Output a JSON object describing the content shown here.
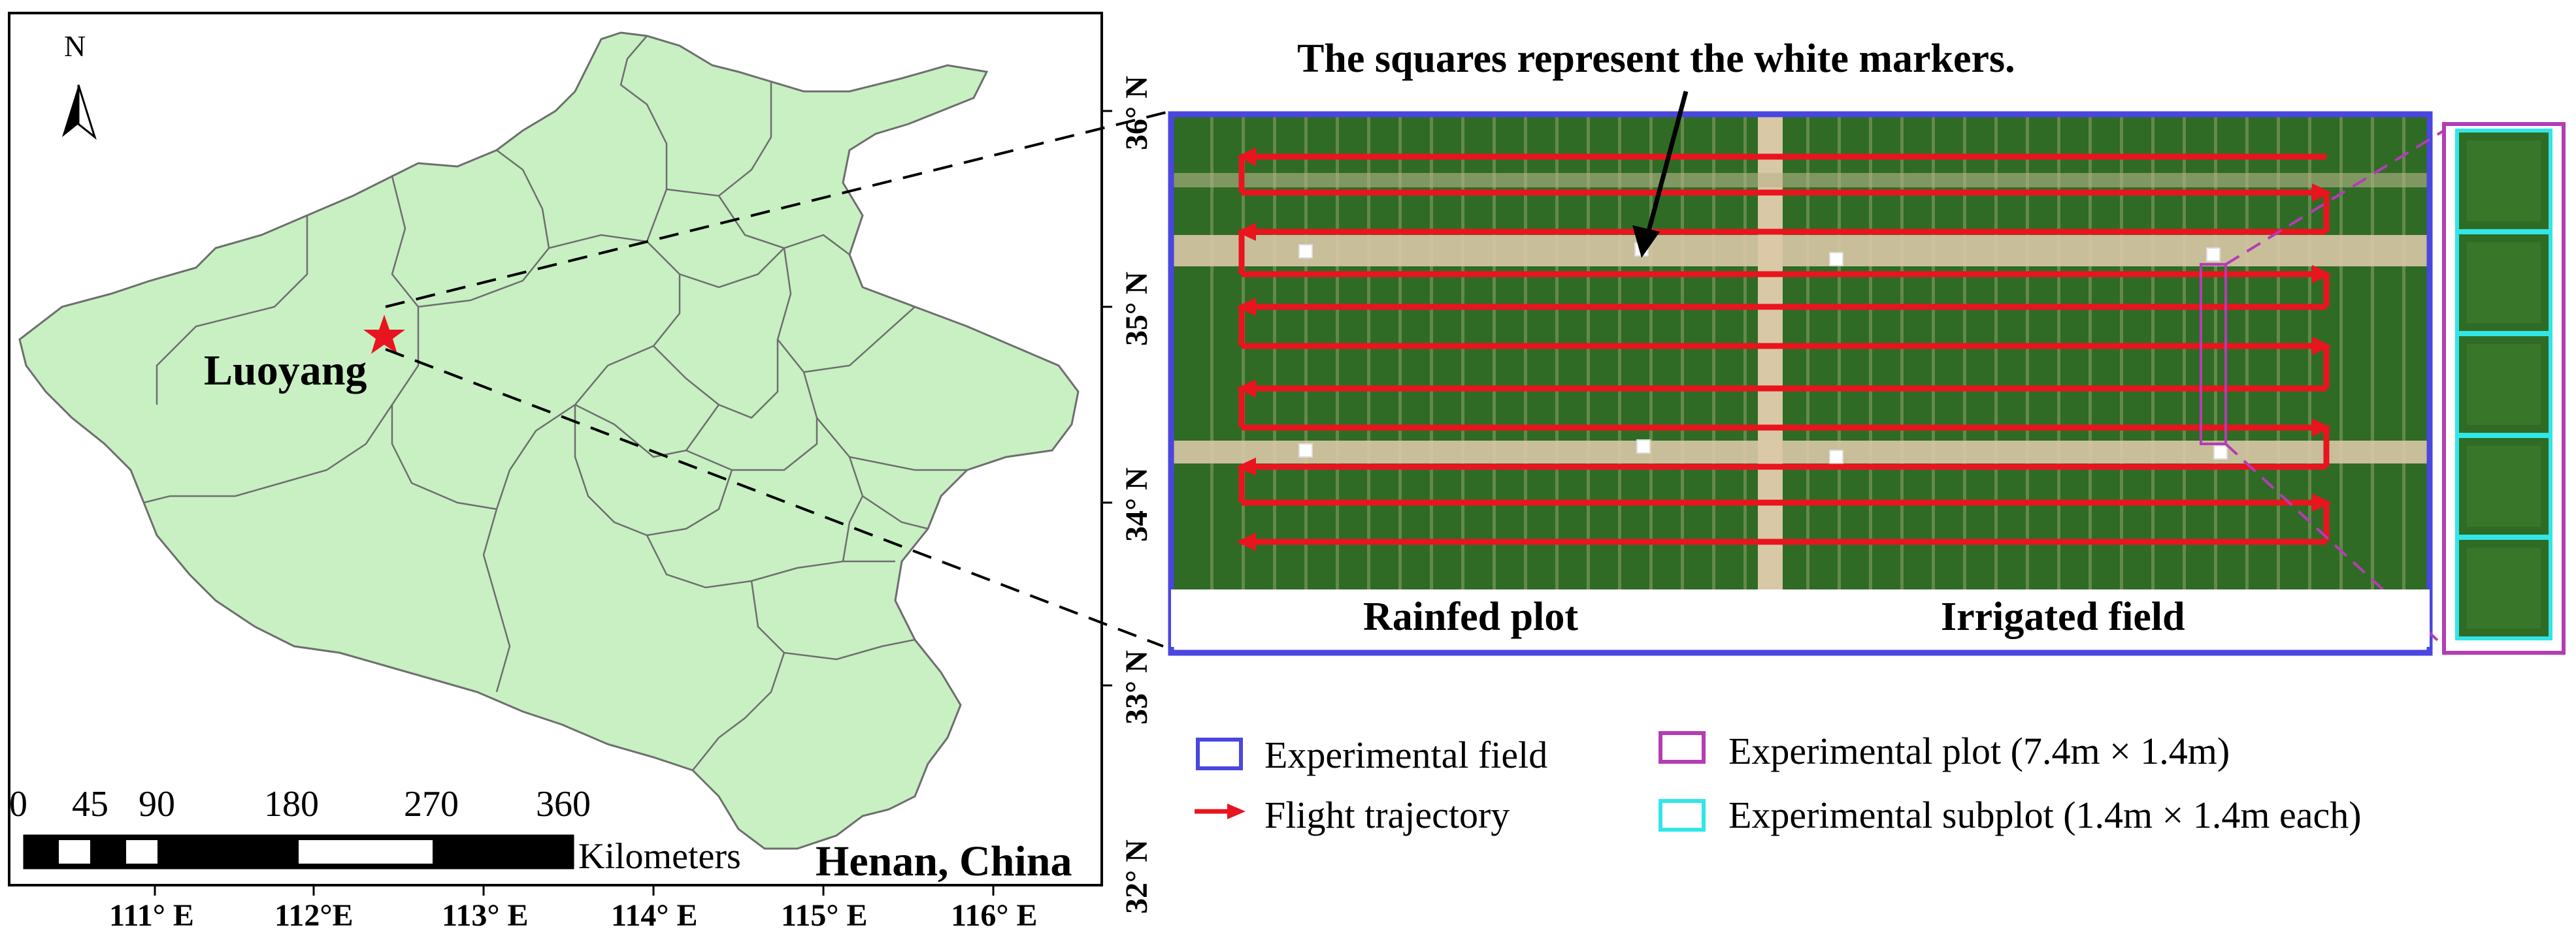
{
  "map": {
    "north_label": "N",
    "city_label": "Luoyang",
    "region_label": "Henan, China",
    "scale": {
      "numbers": [
        "0",
        "45",
        "90",
        "180",
        "270",
        "360"
      ],
      "unit": "Kilometers"
    },
    "longitude_labels": [
      "111° E",
      "112°E",
      "113° E",
      "114° E",
      "115° E",
      "116° E"
    ],
    "latitude_labels": [
      "36° N",
      "35° N",
      "34° N",
      "33° N",
      "32° N"
    ]
  },
  "field": {
    "annotation": "The squares represent the white markers.",
    "left_label": "Rainfed plot",
    "right_label": "Irrigated field"
  },
  "legend": {
    "items": [
      {
        "label": "Experimental field",
        "color": "#4a46e0",
        "symbol": "box"
      },
      {
        "label": "Flight trajectory",
        "color": "#e8141e",
        "symbol": "arrow"
      },
      {
        "label": "Experimental plot (7.4m × 1.4m)",
        "color": "#b43cb4",
        "symbol": "box"
      },
      {
        "label": "Experimental subplot (1.4m × 1.4m each)",
        "color": "#32e6e6",
        "symbol": "box"
      }
    ]
  },
  "colors": {
    "province_fill": "#c8f0c3",
    "boundary": "#6e6e6e",
    "star": "#e8141e",
    "crop": "#2f6b25",
    "soil": "#d9c8a6"
  }
}
